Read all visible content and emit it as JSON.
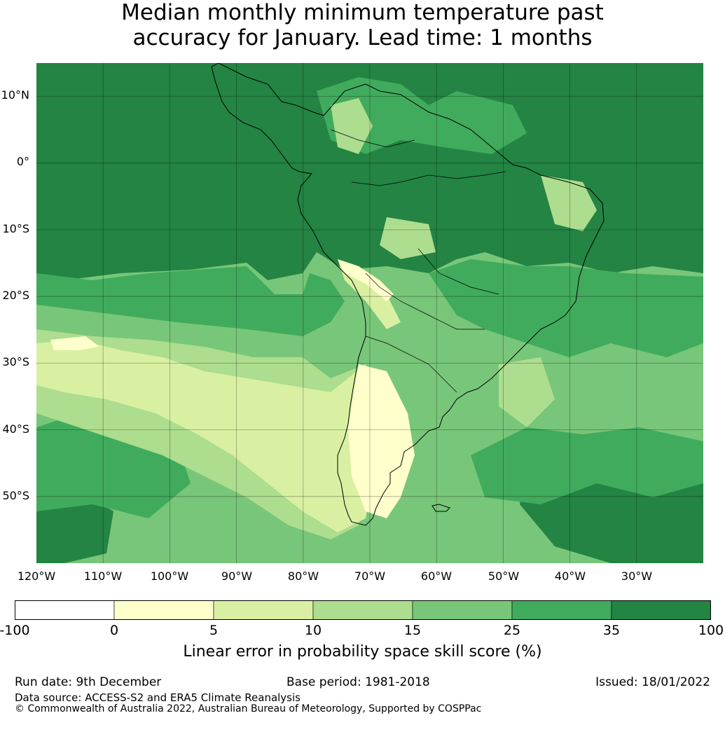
{
  "title": {
    "line1": "Median monthly minimum temperature past",
    "line2": "accuracy for January. Lead time: 1 months"
  },
  "map": {
    "lat_labels": [
      "10°N",
      "0°",
      "10°S",
      "20°S",
      "30°S",
      "40°S",
      "50°S"
    ],
    "lon_labels": [
      "120°W",
      "110°W",
      "100°W",
      "90°W",
      "80°W",
      "70°W",
      "60°W",
      "50°W",
      "40°W",
      "30°W"
    ],
    "extent": {
      "lon": [
        -120,
        -20
      ],
      "lat": [
        -60,
        15
      ]
    },
    "colors": {
      "coast": "#000000"
    }
  },
  "colorbar": {
    "ticks": [
      "-100",
      "0",
      "5",
      "10",
      "15",
      "25",
      "35",
      "100"
    ],
    "colors": [
      "#ffffff",
      "#ffffcc",
      "#d9f0a3",
      "#addd8e",
      "#78c679",
      "#41ab5d",
      "#238443"
    ],
    "label": "Linear error in probability space skill score (%)"
  },
  "footer": {
    "run_date": "Run date: 9th December",
    "base_period": "Base period: 1981-2018",
    "issued": "Issued: 18/01/2022",
    "data_source": "Data source: ACCESS-S2 and ERA5 Climate Reanalysis",
    "copyright": "© Commonwealth of Australia 2022, Australian Bureau of Meteorology, Supported by COSPPac"
  }
}
